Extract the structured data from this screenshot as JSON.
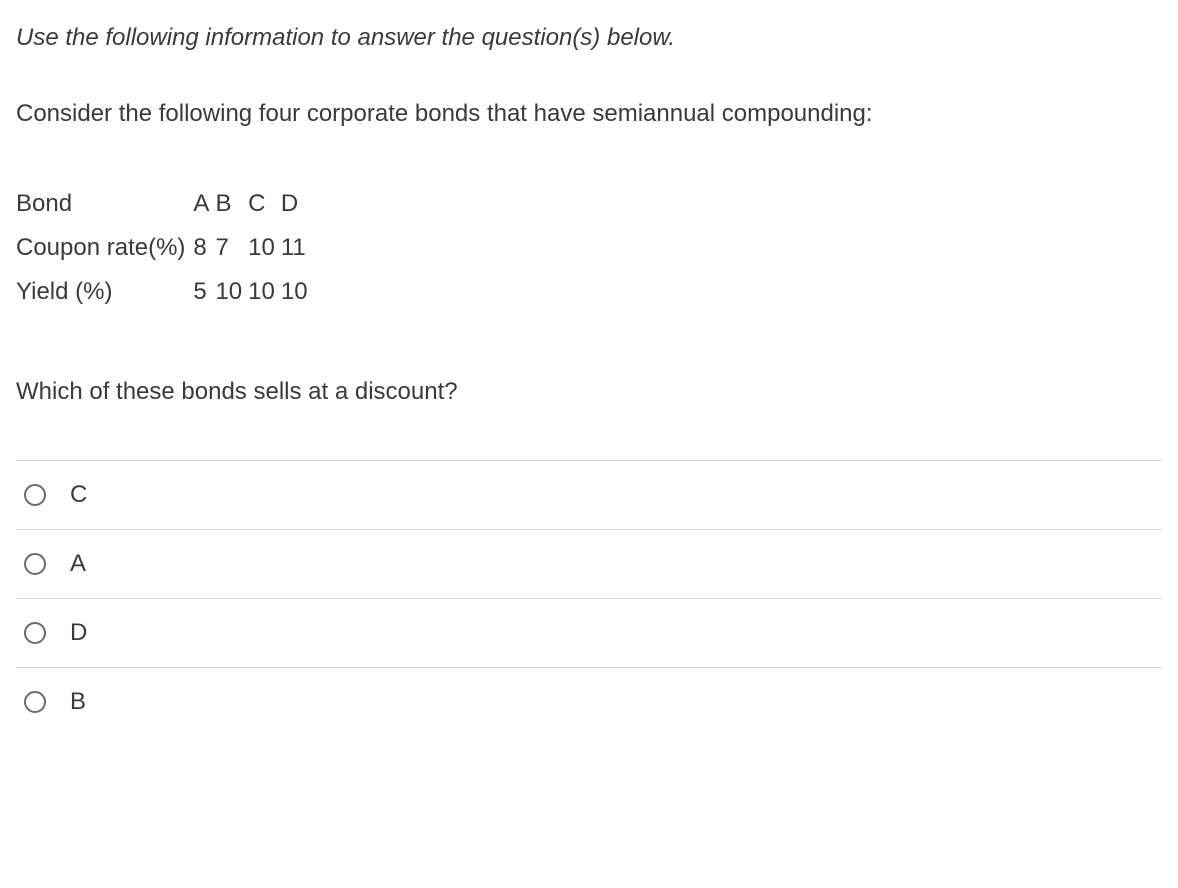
{
  "instruction": "Use the following information to answer the question(s) below.",
  "context": "Consider the following four corporate bonds that have semiannual compounding:",
  "table": {
    "rows": [
      {
        "label": "Bond",
        "values": [
          "A",
          "B",
          "C",
          "D"
        ]
      },
      {
        "label": "Coupon rate(%)",
        "values": [
          "8",
          "7",
          "10",
          "11"
        ]
      },
      {
        "label": "Yield (%)",
        "values": [
          "5",
          "10",
          "10",
          "10"
        ]
      }
    ]
  },
  "question": "Which of these bonds sells at a discount?",
  "options": [
    {
      "label": "C"
    },
    {
      "label": "A"
    },
    {
      "label": "D"
    },
    {
      "label": "B"
    }
  ],
  "colors": {
    "text": "#3a3a3a",
    "divider": "#d8d8d8",
    "radio_border": "#6b6b6b",
    "background": "#ffffff"
  },
  "typography": {
    "base_fontsize": 24,
    "instruction_style": "italic"
  }
}
